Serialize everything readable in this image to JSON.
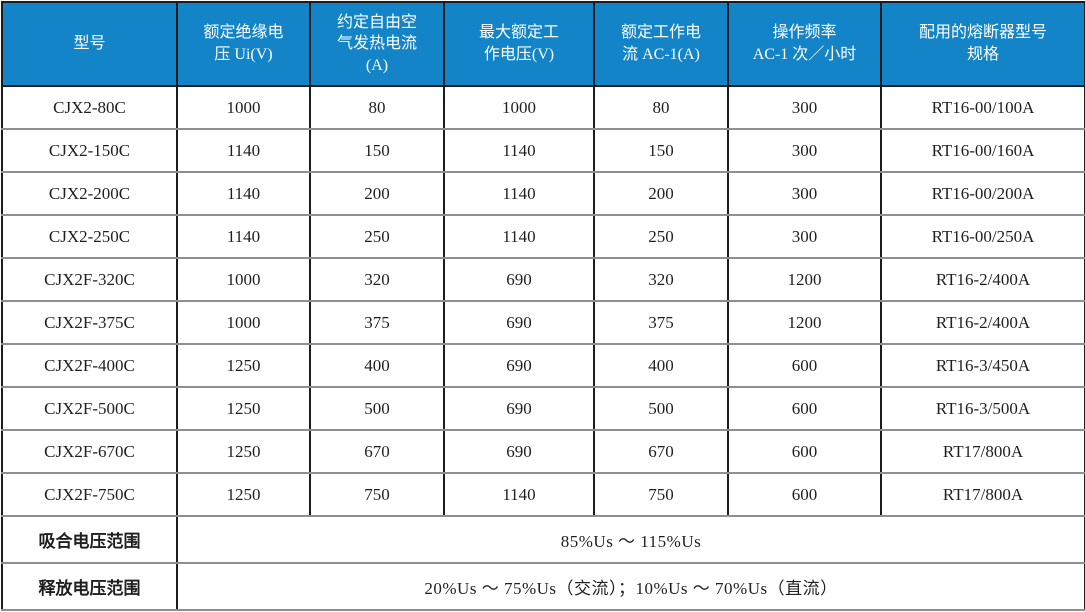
{
  "table": {
    "columns": [
      "型号",
      "额定绝缘电\n压 Ui(V)",
      "约定自由空\n气发热电流\n(A)",
      "最大额定工\n作电压(V)",
      "额定工作电\n流 AC-1(A)",
      "操作频率\nAC-1 次／小时",
      "配用的熔断器型号\n规格"
    ],
    "rows": [
      [
        "CJX2-80C",
        "1000",
        "80",
        "1000",
        "80",
        "300",
        "RT16-00/100A"
      ],
      [
        "CJX2-150C",
        "1140",
        "150",
        "1140",
        "150",
        "300",
        "RT16-00/160A"
      ],
      [
        "CJX2-200C",
        "1140",
        "200",
        "1140",
        "200",
        "300",
        "RT16-00/200A"
      ],
      [
        "CJX2-250C",
        "1140",
        "250",
        "1140",
        "250",
        "300",
        "RT16-00/250A"
      ],
      [
        "CJX2F-320C",
        "1000",
        "320",
        "690",
        "320",
        "1200",
        "RT16-2/400A"
      ],
      [
        "CJX2F-375C",
        "1000",
        "375",
        "690",
        "375",
        "1200",
        "RT16-2/400A"
      ],
      [
        "CJX2F-400C",
        "1250",
        "400",
        "690",
        "400",
        "600",
        "RT16-3/450A"
      ],
      [
        "CJX2F-500C",
        "1250",
        "500",
        "690",
        "500",
        "600",
        "RT16-3/500A"
      ],
      [
        "CJX2F-670C",
        "1250",
        "670",
        "690",
        "670",
        "600",
        "RT17/800A"
      ],
      [
        "CJX2F-750C",
        "1250",
        "750",
        "1140",
        "750",
        "600",
        "RT17/800A"
      ]
    ],
    "footer_rows": [
      {
        "label": "吸合电压范围",
        "value": "85%Us ～ 115%Us"
      },
      {
        "label": "释放电压范围",
        "value": "20%Us ～ 75%Us（交流）；10%Us ～ 70%Us（直流）"
      }
    ]
  },
  "colors": {
    "header_bg": "#1384C8",
    "header_text": "#FFFFFF",
    "grid_dark": "#1C1C1C",
    "grid_gray": "#8F8F8F",
    "body_text": "#1F1F1F"
  }
}
